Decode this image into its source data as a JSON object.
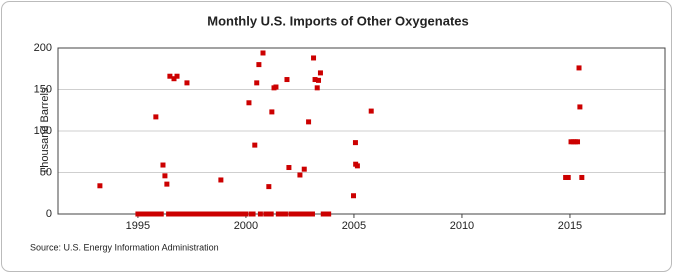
{
  "chart_data": {
    "type": "scatter",
    "title": "Monthly U.S. Imports of Other Oxygenates",
    "ylabel": "Thousand Barrels",
    "source": "Source: U.S. Energy Information Administration",
    "xlim": [
      1991.3,
      2019.4
    ],
    "xticks": [
      1995,
      2000,
      2005,
      2010,
      2015
    ],
    "ylim": [
      0,
      200
    ],
    "yticks": [
      0,
      50,
      100,
      150,
      200
    ],
    "grid": true,
    "series": [
      {
        "color": "#cc0000",
        "x": [
          1993.24,
          1995.83,
          1996.16,
          1996.25,
          1996.34,
          1996.48,
          1996.67,
          1996.81,
          1997.27,
          1998.84,
          2000.14,
          2000.41,
          2000.5,
          2000.6,
          2000.79,
          2001.06,
          2001.2,
          2001.3,
          2001.39,
          2001.9,
          2001.99,
          2002.5,
          2002.7,
          2002.9,
          2003.13,
          2003.2,
          2003.3,
          2003.36,
          2003.45,
          2004.98,
          2005.07,
          2005.08,
          2005.16,
          2005.8,
          2014.8,
          2014.92,
          2015.05,
          2015.15,
          2015.25,
          2015.35,
          2015.42,
          2015.46,
          2015.55
        ],
        "values": [
          34,
          117,
          59,
          46,
          36,
          166,
          163,
          166,
          158,
          41,
          134,
          83,
          158,
          180,
          194,
          33,
          123,
          152,
          153,
          162,
          56,
          47,
          54,
          111,
          188,
          162,
          152,
          161,
          170,
          22,
          86,
          60,
          58,
          124,
          44,
          44,
          87,
          87,
          87,
          87,
          176,
          129,
          44
        ]
      },
      {
        "color": "#cc0000",
        "x": [
          1995.0,
          1995.08,
          1995.17,
          1995.25,
          1995.33,
          1995.42,
          1995.5,
          1995.58,
          1995.67,
          1995.75,
          1995.92,
          1996.0,
          1996.08,
          1996.42,
          1996.58,
          1996.75,
          1996.92,
          1997.0,
          1997.08,
          1997.17,
          1997.25,
          1997.33,
          1997.42,
          1997.5,
          1997.58,
          1997.67,
          1997.75,
          1997.83,
          1997.92,
          1998.0,
          1998.08,
          1998.17,
          1998.25,
          1998.33,
          1998.42,
          1998.5,
          1998.58,
          1998.67,
          1998.75,
          1998.92,
          1999.0,
          1999.08,
          1999.17,
          1999.25,
          1999.33,
          1999.42,
          1999.5,
          1999.58,
          1999.67,
          1999.75,
          1999.83,
          1999.92,
          2000.0,
          2000.25,
          2000.33,
          2000.67,
          2000.92,
          2001.0,
          2001.17,
          2001.5,
          2001.58,
          2001.67,
          2001.75,
          2001.83,
          2002.08,
          2002.17,
          2002.25,
          2002.33,
          2002.42,
          2002.58,
          2002.67,
          2002.83,
          2003.0,
          2003.08,
          2003.58,
          2003.67,
          2003.75,
          2003.83
        ],
        "values": [
          0,
          0,
          0,
          0,
          0,
          0,
          0,
          0,
          0,
          0,
          0,
          0,
          0,
          0,
          0,
          0,
          0,
          0,
          0,
          0,
          0,
          0,
          0,
          0,
          0,
          0,
          0,
          0,
          0,
          0,
          0,
          0,
          0,
          0,
          0,
          0,
          0,
          0,
          0,
          0,
          0,
          0,
          0,
          0,
          0,
          0,
          0,
          0,
          0,
          0,
          0,
          0,
          0,
          0,
          0,
          0,
          0,
          0,
          0,
          0,
          0,
          0,
          0,
          0,
          0,
          0,
          0,
          0,
          0,
          0,
          0,
          0,
          0,
          0,
          0,
          0,
          0,
          0
        ]
      }
    ]
  }
}
